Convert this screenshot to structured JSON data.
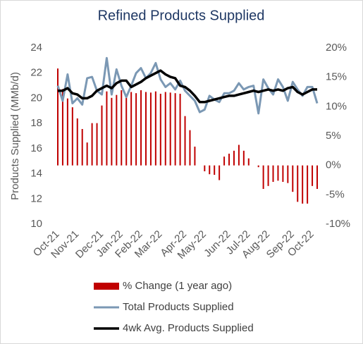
{
  "chart_data": {
    "type": "combo",
    "title": "Refined Products Supplied",
    "y_label": "Products Supplied (MMb/d)",
    "categories": [
      "Oct-21",
      null,
      null,
      null,
      "Nov-21",
      null,
      null,
      null,
      null,
      "Dec-21",
      null,
      null,
      null,
      "Jan-22",
      null,
      null,
      null,
      "Feb-22",
      null,
      null,
      null,
      "Mar-22",
      null,
      null,
      null,
      null,
      "Apr-22",
      null,
      null,
      null,
      "May-22",
      null,
      null,
      null,
      null,
      "Jun-22",
      null,
      null,
      null,
      "Jul-22",
      null,
      null,
      null,
      "Aug-22",
      null,
      null,
      null,
      null,
      "Sep-22",
      null,
      null,
      null,
      "Oct-22",
      null
    ],
    "ylim": [
      10,
      24
    ],
    "yticks": [
      10,
      12,
      14,
      16,
      18,
      20,
      22,
      24
    ],
    "y2lim": [
      -10,
      20
    ],
    "y2ticks": [
      {
        "value": -10,
        "label": "-10%"
      },
      {
        "value": -5,
        "label": "-5%"
      },
      {
        "value": 0,
        "label": "0%"
      },
      {
        "value": 5,
        "label": "5%"
      },
      {
        "value": 10,
        "label": "10%"
      },
      {
        "value": 15,
        "label": "15%"
      },
      {
        "value": 20,
        "label": "20%"
      }
    ],
    "series": [
      {
        "name": "% Change (1 year ago)",
        "type": "bar",
        "axis": "y2",
        "color": "#c00000",
        "values": [
          16.5,
          13,
          11.4,
          9.9,
          8,
          6.2,
          3.9,
          7.2,
          7.2,
          10.2,
          12.6,
          11.5,
          12,
          12.8,
          11.5,
          12.5,
          12.3,
          12.8,
          12.5,
          12.4,
          12.6,
          12.2,
          12.5,
          12.4,
          12.3,
          12.2,
          8.4,
          6,
          3.2,
          0,
          -1,
          -1.5,
          -1.6,
          -2.5,
          1.5,
          2,
          2.5,
          3.5,
          2.5,
          1.2,
          0,
          -0.3,
          -4,
          -3.5,
          -2.8,
          -2.6,
          -2.8,
          -3,
          -4.5,
          -6.2,
          -6.5,
          -6.5,
          -3.5,
          -4
        ]
      },
      {
        "name": "Total Products Supplied",
        "type": "line",
        "color": "#7b98b4",
        "values": [
          21.0,
          19.8,
          21.9,
          19.6,
          20.0,
          19.5,
          21.6,
          21.7,
          20.6,
          20.3,
          23.2,
          20.3,
          22.3,
          21.0,
          20.1,
          21.0,
          22.0,
          22.4,
          21.6,
          22.0,
          22.8,
          21.5,
          20.9,
          21.2,
          20.7,
          21.4,
          20.6,
          20.2,
          19.8,
          18.9,
          19.1,
          20.2,
          19.9,
          19.7,
          20.4,
          20.4,
          20.6,
          21.2,
          20.7,
          20.9,
          21.0,
          18.8,
          21.5,
          20.8,
          20.3,
          21.5,
          20.9,
          19.8,
          21.3,
          20.7,
          20.2,
          20.9,
          20.9,
          19.6
        ]
      },
      {
        "name": "4wk Avg. Products Supplied",
        "type": "line",
        "color": "#000000",
        "values": [
          20.6,
          20.6,
          20.8,
          20.4,
          20.3,
          20.0,
          20.0,
          20.2,
          20.6,
          20.8,
          21.0,
          20.8,
          21.2,
          21.4,
          21.4,
          20.9,
          21.1,
          21.3,
          21.6,
          21.8,
          22.0,
          22.2,
          21.9,
          21.7,
          21.6,
          21.0,
          20.9,
          20.6,
          20.2,
          19.7,
          19.7,
          19.8,
          19.9,
          20.0,
          20.1,
          20.2,
          20.2,
          20.3,
          20.4,
          20.5,
          20.6,
          20.5,
          20.6,
          20.7,
          20.6,
          20.7,
          20.6,
          20.8,
          20.9,
          20.5,
          20.3,
          20.5,
          20.7,
          20.7
        ]
      }
    ]
  }
}
